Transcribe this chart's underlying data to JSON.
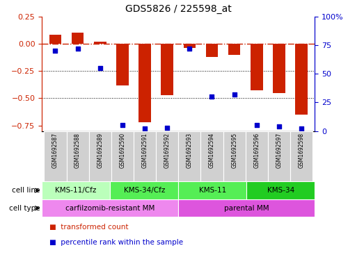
{
  "title": "GDS5826 / 225598_at",
  "samples": [
    "GSM1692587",
    "GSM1692588",
    "GSM1692589",
    "GSM1692590",
    "GSM1692591",
    "GSM1692592",
    "GSM1692593",
    "GSM1692594",
    "GSM1692595",
    "GSM1692596",
    "GSM1692597",
    "GSM1692598"
  ],
  "bar_values": [
    0.08,
    0.1,
    0.02,
    -0.38,
    -0.72,
    -0.47,
    -0.04,
    -0.12,
    -0.1,
    -0.43,
    -0.45,
    -0.65
  ],
  "dot_values_pct": [
    70,
    72,
    55,
    5,
    2,
    3,
    72,
    30,
    32,
    5,
    4,
    2
  ],
  "ylim_left": [
    -0.8,
    0.25
  ],
  "ylim_right": [
    0,
    100
  ],
  "yticks_left": [
    0.25,
    0,
    -0.25,
    -0.5,
    -0.75
  ],
  "ytick_right_labels": [
    "100%",
    "75",
    "50",
    "25",
    "0"
  ],
  "ytick_right_vals": [
    100,
    75,
    50,
    25,
    0
  ],
  "bar_color": "#cc2200",
  "dot_color": "#0000cc",
  "hline_color": "#cc2200",
  "cell_line_groups": [
    {
      "label": "KMS-11/Cfz",
      "start": 0,
      "end": 3,
      "color": "#bbffbb"
    },
    {
      "label": "KMS-34/Cfz",
      "start": 3,
      "end": 6,
      "color": "#55ee55"
    },
    {
      "label": "KMS-11",
      "start": 6,
      "end": 9,
      "color": "#55ee55"
    },
    {
      "label": "KMS-34",
      "start": 9,
      "end": 12,
      "color": "#22cc22"
    }
  ],
  "cell_type_groups": [
    {
      "label": "carfilzomib-resistant MM",
      "start": 0,
      "end": 6,
      "color": "#ee88ee"
    },
    {
      "label": "parental MM",
      "start": 6,
      "end": 12,
      "color": "#dd55dd"
    }
  ],
  "legend_items": [
    {
      "label": "transformed count",
      "color": "#cc2200"
    },
    {
      "label": "percentile rank within the sample",
      "color": "#0000cc"
    }
  ],
  "cell_line_label": "cell line",
  "cell_type_label": "cell type",
  "sample_box_color": "#d0d0d0",
  "bar_width": 0.55
}
